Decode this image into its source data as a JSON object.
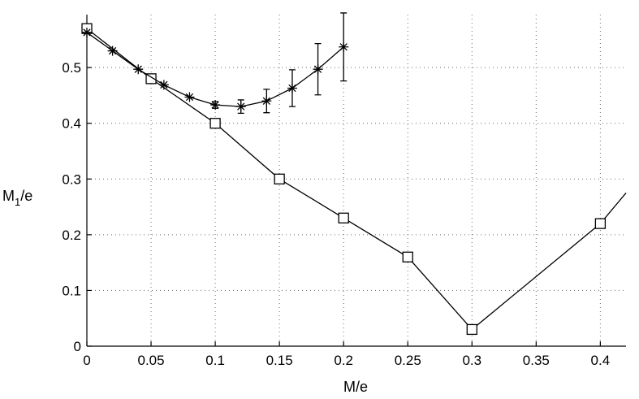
{
  "chart_data": {
    "type": "line",
    "xlabel": "M/e",
    "ylabel": "M1/e",
    "ylabel_main": "M",
    "ylabel_sub": "1",
    "ylabel_rest": "/e",
    "xlim": [
      0,
      0.42
    ],
    "ylim": [
      0,
      0.595
    ],
    "xticks": [
      0,
      0.05,
      0.1,
      0.15,
      0.2,
      0.25,
      0.3,
      0.35,
      0.4
    ],
    "xtick_labels": [
      "0",
      "0.05",
      "0.1",
      "0.15",
      "0.2",
      "0.25",
      "0.3",
      "0.35",
      "0.4"
    ],
    "yticks": [
      0,
      0.1,
      0.2,
      0.3,
      0.4,
      0.5
    ],
    "ytick_labels": [
      "0",
      "0.1",
      "0.2",
      "0.3",
      "0.4",
      "0.5"
    ],
    "grid": true,
    "series": [
      {
        "marker": "square",
        "x": [
          0,
          0.05,
          0.1,
          0.15,
          0.2,
          0.25,
          0.3,
          0.4,
          0.42
        ],
        "y": [
          0.57,
          0.48,
          0.4,
          0.3,
          0.23,
          0.16,
          0.03,
          0.22,
          0.275
        ],
        "marked": [
          true,
          true,
          true,
          true,
          true,
          true,
          true,
          true,
          false
        ]
      },
      {
        "marker": "star",
        "x": [
          0,
          0.02,
          0.04,
          0.06,
          0.08,
          0.1,
          0.12,
          0.14,
          0.16,
          0.18,
          0.2
        ],
        "y": [
          0.563,
          0.53,
          0.497,
          0.469,
          0.447,
          0.433,
          0.43,
          0.44,
          0.463,
          0.497,
          0.537
        ],
        "err": [
          0,
          0,
          0,
          0,
          0,
          0.006,
          0.012,
          0.021,
          0.033,
          0.046,
          0.061
        ]
      }
    ]
  }
}
